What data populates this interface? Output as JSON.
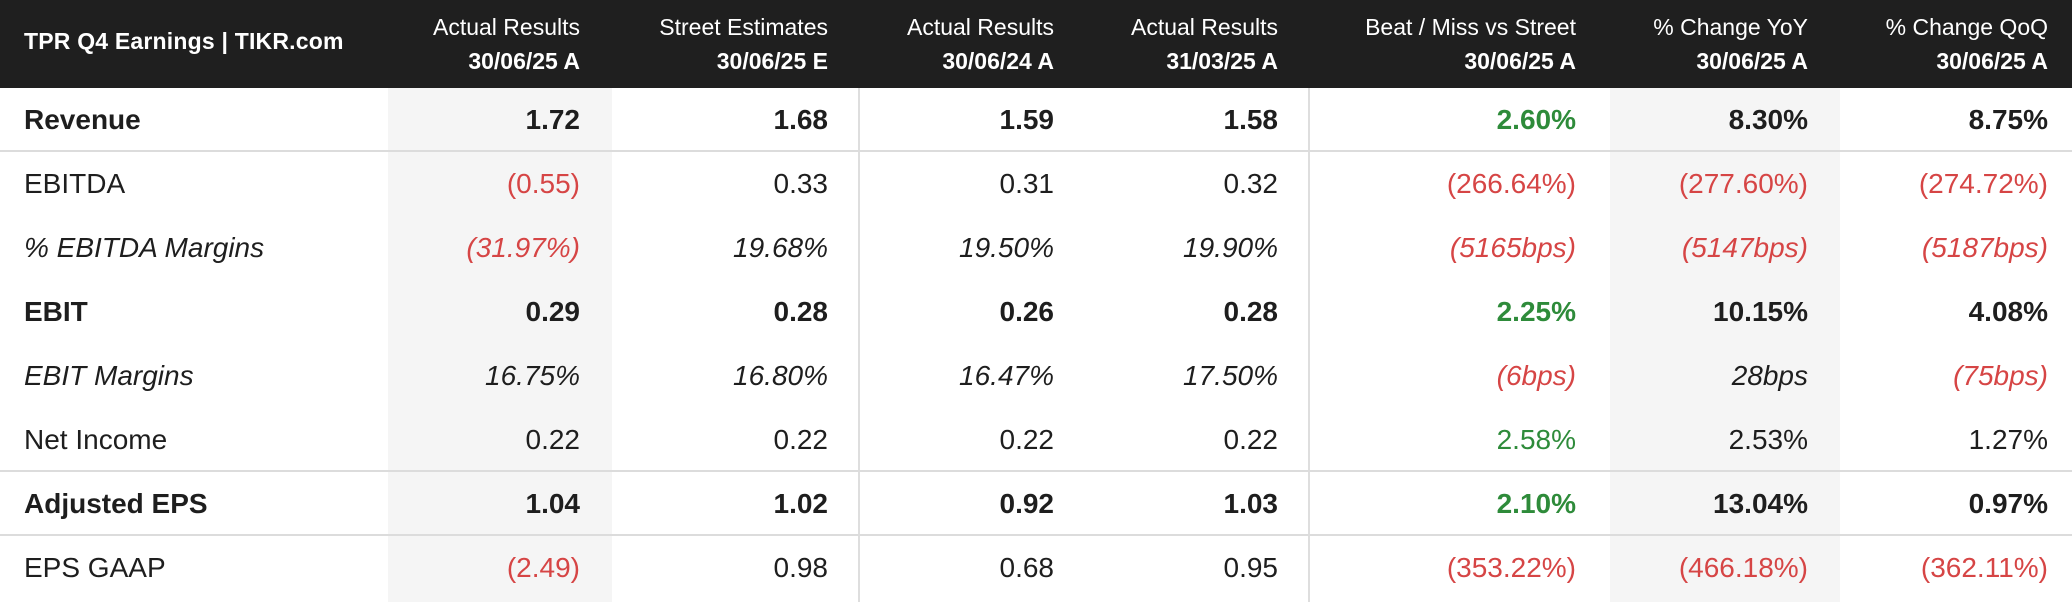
{
  "header": {
    "title": "TPR Q4 Earnings | TIKR.com",
    "columns": [
      {
        "line1": "Actual Results",
        "line2": "30/06/25 A"
      },
      {
        "line1": "Street Estimates",
        "line2": "30/06/25 E"
      },
      {
        "line1": "Actual Results",
        "line2": "30/06/24 A"
      },
      {
        "line1": "Actual Results",
        "line2": "31/03/25 A"
      },
      {
        "line1": "Beat / Miss vs Street",
        "line2": "30/06/25 A"
      },
      {
        "line1": "% Change YoY",
        "line2": "30/06/25 A"
      },
      {
        "line1": "% Change QoQ",
        "line2": "30/06/25 A"
      }
    ]
  },
  "colors": {
    "negative": "#d64545",
    "positive": "#2e8b3a",
    "header_bg": "#1f1f1f"
  },
  "rows": [
    {
      "label": "Revenue",
      "style": "bold",
      "values": [
        "1.72",
        "1.68",
        "1.59",
        "1.58",
        "2.60%",
        "8.30%",
        "8.75%"
      ],
      "status": [
        "",
        "",
        "",
        "",
        "pos",
        "",
        ""
      ]
    },
    {
      "label": "EBITDA",
      "style": "normal",
      "values": [
        "(0.55)",
        "0.33",
        "0.31",
        "0.32",
        "(266.64%)",
        "(277.60%)",
        "(274.72%)"
      ],
      "status": [
        "neg",
        "",
        "",
        "",
        "neg",
        "neg",
        "neg"
      ]
    },
    {
      "label": "% EBITDA Margins",
      "style": "italic",
      "values": [
        "(31.97%)",
        "19.68%",
        "19.50%",
        "19.90%",
        "(5165bps)",
        "(5147bps)",
        "(5187bps)"
      ],
      "status": [
        "neg",
        "",
        "",
        "",
        "neg",
        "neg",
        "neg"
      ]
    },
    {
      "label": "EBIT",
      "style": "bold",
      "values": [
        "0.29",
        "0.28",
        "0.26",
        "0.28",
        "2.25%",
        "10.15%",
        "4.08%"
      ],
      "status": [
        "",
        "",
        "",
        "",
        "pos",
        "",
        ""
      ]
    },
    {
      "label": "EBIT Margins",
      "style": "italic",
      "values": [
        "16.75%",
        "16.80%",
        "16.47%",
        "17.50%",
        "(6bps)",
        "28bps",
        "(75bps)"
      ],
      "status": [
        "",
        "",
        "",
        "",
        "neg",
        "",
        "neg"
      ]
    },
    {
      "label": "Net Income",
      "style": "normal",
      "values": [
        "0.22",
        "0.22",
        "0.22",
        "0.22",
        "2.58%",
        "2.53%",
        "1.27%"
      ],
      "status": [
        "",
        "",
        "",
        "",
        "pos",
        "",
        ""
      ]
    },
    {
      "label": "Adjusted EPS",
      "style": "bold",
      "values": [
        "1.04",
        "1.02",
        "0.92",
        "1.03",
        "2.10%",
        "13.04%",
        "0.97%"
      ],
      "status": [
        "",
        "",
        "",
        "",
        "pos",
        "",
        ""
      ]
    },
    {
      "label": "EPS GAAP",
      "style": "normal",
      "values": [
        "(2.49)",
        "0.98",
        "0.68",
        "0.95",
        "(353.22%)",
        "(466.18%)",
        "(362.11%)"
      ],
      "status": [
        "neg",
        "",
        "",
        "",
        "neg",
        "neg",
        "neg"
      ]
    }
  ]
}
